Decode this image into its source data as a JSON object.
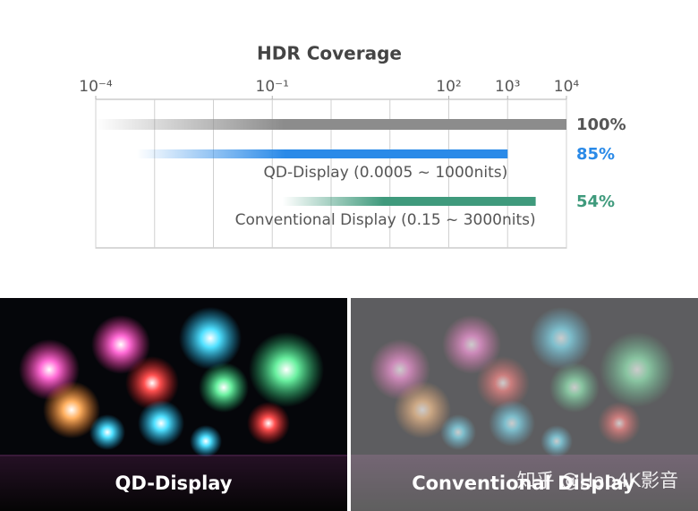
{
  "chart_data": {
    "type": "range-bar",
    "title": "HDR Coverage",
    "xscale": "log",
    "xlim": [
      0.0001,
      10000
    ],
    "xticks": [
      {
        "value": 0.0001,
        "label": "10⁻⁴"
      },
      {
        "value": 0.1,
        "label": "10⁻¹"
      },
      {
        "value": 100,
        "label": "10²"
      },
      {
        "value": 1000,
        "label": "10³"
      },
      {
        "value": 10000,
        "label": "10⁴"
      }
    ],
    "grid": true,
    "series": [
      {
        "color": "#8c8c8c",
        "range": [
          0.0001,
          10000
        ],
        "value": 100,
        "value_label": "100%",
        "label_color": "#555555"
      },
      {
        "name": "QD-Display (0.0005 ~ 1000nits)",
        "color": "#2a8ae8",
        "range": [
          0.0005,
          1000
        ],
        "value": 85,
        "value_label": "85%",
        "label_color": "#2a8ae8"
      },
      {
        "name": "Conventional Display (0.15 ~ 3000nits)",
        "color": "#3f9a7c",
        "range": [
          0.15,
          3000
        ],
        "value": 54,
        "value_label": "54%",
        "label_color": "#3f9a7c"
      }
    ]
  },
  "photos": [
    {
      "label": "QD-Display"
    },
    {
      "label": "Conventional Display"
    }
  ],
  "watermark": "知乎 @Hao4K影音"
}
